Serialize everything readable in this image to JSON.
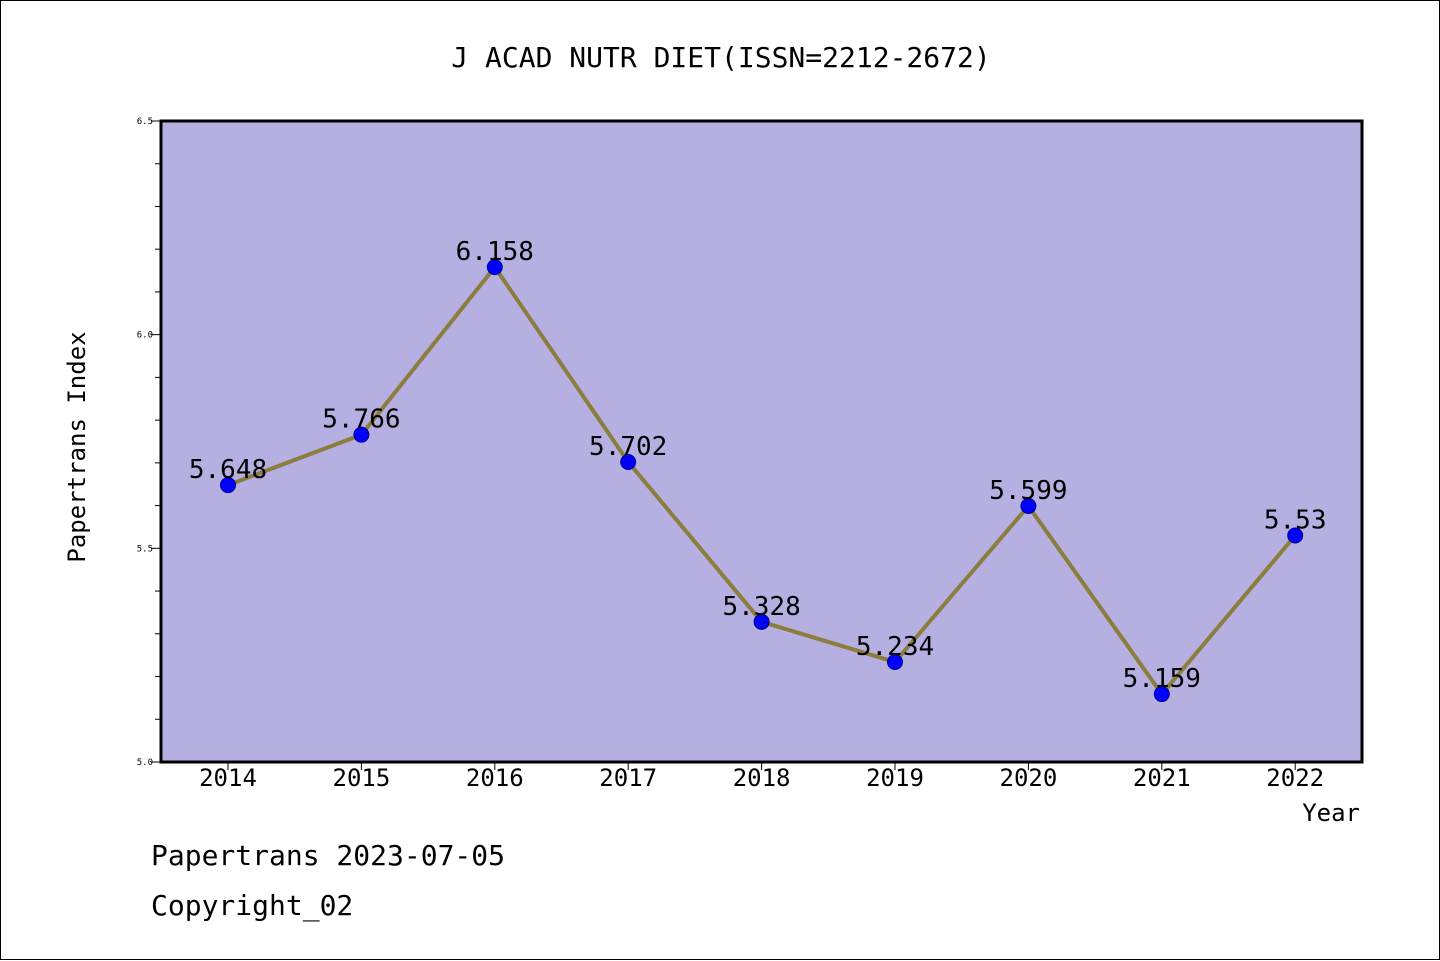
{
  "chart_data": {
    "type": "line",
    "title": "J ACAD NUTR DIET(ISSN=2212-2672)",
    "xlabel": "Year",
    "ylabel": "Papertrans Index",
    "categories": [
      "2014",
      "2015",
      "2016",
      "2017",
      "2018",
      "2019",
      "2020",
      "2021",
      "2022"
    ],
    "values": [
      5.648,
      5.766,
      6.158,
      5.702,
      5.328,
      5.234,
      5.599,
      5.159,
      5.53
    ],
    "data_labels": [
      "5.648",
      "5.766",
      "6.158",
      "5.702",
      "5.328",
      "5.234",
      "5.599",
      "5.159",
      "5.53"
    ],
    "ylim": [
      5.0,
      6.5
    ],
    "yticks": [
      "5.0",
      "5.5",
      "6.0",
      "6.5"
    ],
    "ytick_values": [
      5.0,
      5.5,
      6.0,
      6.5
    ],
    "grid": false,
    "colors": {
      "plot_background": "#b5afe2",
      "line": "#8b7d3c",
      "marker": "#0000ff",
      "marker_edge": "#00008b"
    }
  },
  "footer": {
    "line1": "Papertrans 2023-07-05",
    "line2": "Copyright_02"
  }
}
